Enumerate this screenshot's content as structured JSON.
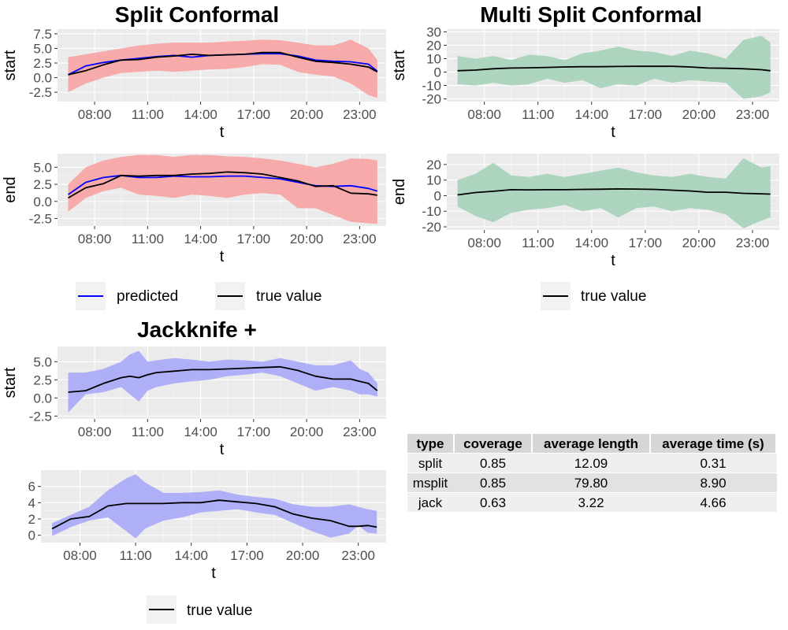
{
  "titles": {
    "split": "Split Conformal",
    "msplit": "Multi Split Conformal",
    "jack": "Jackknife +"
  },
  "legends": {
    "split": [
      "predicted",
      "true value"
    ],
    "msplit": [
      "true value"
    ],
    "jack": [
      "true value"
    ]
  },
  "colors": {
    "split_band": "#f8a3a3",
    "msplit_band": "#a6d2b9",
    "jack_band": "#a8a8f8",
    "predicted_line": "#0000ff",
    "true_line": "#000000",
    "panel_bg": "#ebebeb"
  },
  "table": {
    "headers": [
      "type",
      "coverage",
      "average length",
      "average time (s)"
    ],
    "rows": [
      [
        "split",
        "0.85",
        "12.09",
        "0.31"
      ],
      [
        "msplit",
        "0.85",
        "79.80",
        "8.90"
      ],
      [
        "jack",
        "0.63",
        "3.22",
        "4.66"
      ]
    ]
  },
  "chart_data": [
    {
      "type": "area",
      "group": "Split Conformal",
      "ylabel": "start",
      "xlabel": "t",
      "x_ticks": [
        "08:00",
        "11:00",
        "14:00",
        "17:00",
        "20:00",
        "23:00"
      ],
      "xlim": [
        5.9,
        24.5
      ],
      "ylim": [
        -4.1,
        8.3
      ],
      "y_ticks": [
        -2.5,
        0.0,
        2.5,
        5.0,
        7.5
      ],
      "y_tick_labels": [
        "-2.5",
        "0.0",
        "2.5",
        "5.0",
        "7.5"
      ],
      "x": [
        6.5,
        7.5,
        8.5,
        9.5,
        10.5,
        11.5,
        12.5,
        13.5,
        14.5,
        15.5,
        16.5,
        17.5,
        18.5,
        19.5,
        20.5,
        21.5,
        22.5,
        23.5,
        24.0
      ],
      "series": [
        {
          "role": "band",
          "lower": [
            -2.5,
            -1.0,
            0.0,
            0.8,
            1.0,
            1.2,
            1.0,
            1.2,
            1.4,
            1.5,
            1.8,
            2.3,
            2.2,
            1.0,
            0.5,
            0.2,
            -1.0,
            -3.0,
            -3.5
          ],
          "upper": [
            3.5,
            4.0,
            4.5,
            5.0,
            5.5,
            5.8,
            6.0,
            6.0,
            6.0,
            6.2,
            6.3,
            6.5,
            6.4,
            6.0,
            5.5,
            5.5,
            6.5,
            5.0,
            3.0
          ]
        },
        {
          "name": "predicted",
          "role": "predicted",
          "values": [
            0.5,
            2.0,
            2.6,
            3.0,
            3.3,
            3.6,
            3.8,
            3.5,
            3.8,
            3.9,
            4.0,
            4.1,
            4.1,
            3.7,
            3.0,
            2.8,
            2.7,
            2.3,
            1.1
          ]
        },
        {
          "name": "true value",
          "role": "true",
          "values": [
            0.5,
            1.2,
            2.2,
            3.0,
            3.1,
            3.5,
            3.7,
            4.0,
            3.8,
            3.9,
            4.0,
            4.3,
            4.3,
            3.5,
            2.8,
            2.6,
            2.3,
            1.8,
            1.0
          ]
        }
      ]
    },
    {
      "type": "area",
      "group": "Split Conformal",
      "ylabel": "end",
      "xlabel": "t",
      "x_ticks": [
        "08:00",
        "11:00",
        "14:00",
        "17:00",
        "20:00",
        "23:00"
      ],
      "xlim": [
        5.9,
        24.5
      ],
      "ylim": [
        -3.6,
        7.0
      ],
      "y_ticks": [
        -2.5,
        0.0,
        2.5,
        5.0
      ],
      "y_tick_labels": [
        "-2.5",
        "0.0",
        "2.5",
        "5.0"
      ],
      "x": [
        6.5,
        7.5,
        8.5,
        9.5,
        10.5,
        11.5,
        12.5,
        13.5,
        14.5,
        15.5,
        16.5,
        17.5,
        18.5,
        19.5,
        20.5,
        21.5,
        22.5,
        23.5,
        24.0
      ],
      "series": [
        {
          "role": "band",
          "lower": [
            -1.5,
            0.5,
            1.5,
            2.0,
            1.0,
            0.8,
            0.5,
            1.0,
            0.8,
            0.5,
            1.0,
            1.2,
            1.0,
            -1.0,
            -1.0,
            -2.0,
            -3.0,
            -3.2,
            -3.3
          ],
          "upper": [
            2.5,
            5.0,
            6.0,
            6.5,
            6.8,
            6.8,
            6.5,
            6.8,
            6.8,
            6.6,
            6.5,
            6.3,
            6.0,
            5.5,
            5.0,
            5.5,
            6.3,
            6.2,
            6.0
          ]
        },
        {
          "name": "predicted",
          "role": "predicted",
          "values": [
            1.0,
            2.8,
            3.5,
            3.8,
            3.5,
            3.5,
            3.7,
            3.6,
            3.6,
            3.7,
            3.7,
            3.5,
            3.3,
            2.8,
            2.3,
            2.2,
            2.3,
            1.9,
            1.5
          ]
        },
        {
          "name": "true value",
          "role": "true",
          "values": [
            0.5,
            2.0,
            2.6,
            3.8,
            3.7,
            3.8,
            3.8,
            4.0,
            4.1,
            4.3,
            4.2,
            4.0,
            3.5,
            3.0,
            2.2,
            2.3,
            1.2,
            1.1,
            0.9
          ]
        }
      ]
    },
    {
      "type": "area",
      "group": "Multi Split Conformal",
      "ylabel": "start",
      "xlabel": "t",
      "x_ticks": [
        "08:00",
        "11:00",
        "14:00",
        "17:00",
        "20:00",
        "23:00"
      ],
      "xlim": [
        5.9,
        24.5
      ],
      "ylim": [
        -22.0,
        32.0
      ],
      "y_ticks": [
        -20,
        -10,
        0,
        10,
        20,
        30
      ],
      "y_tick_labels": [
        "-20",
        "-10",
        "0",
        "10",
        "20",
        "30"
      ],
      "x": [
        6.5,
        7.5,
        8.5,
        9.5,
        10.5,
        11.5,
        12.5,
        13.5,
        14.5,
        15.5,
        16.5,
        17.5,
        18.5,
        19.5,
        20.5,
        21.5,
        22.5,
        23.5,
        24.0
      ],
      "series": [
        {
          "role": "band",
          "lower": [
            -9.0,
            -10.0,
            -8.0,
            -10.0,
            -9.0,
            -5.0,
            -8.0,
            -6.0,
            -12.0,
            -9.0,
            -10.0,
            -5.0,
            -8.0,
            -6.0,
            -7.0,
            -8.0,
            -20.0,
            -18.0,
            -15.0
          ],
          "upper": [
            12.0,
            10.0,
            12.0,
            9.0,
            13.0,
            12.0,
            9.0,
            14.0,
            16.0,
            19.0,
            16.0,
            15.0,
            12.0,
            16.0,
            14.0,
            10.0,
            24.0,
            27.0,
            22.0
          ]
        },
        {
          "name": "true value",
          "role": "true",
          "values": [
            1.0,
            1.5,
            2.5,
            3.0,
            3.2,
            3.5,
            3.8,
            4.0,
            4.0,
            4.2,
            4.3,
            4.3,
            4.3,
            3.8,
            3.0,
            2.8,
            2.5,
            1.8,
            1.0
          ]
        }
      ]
    },
    {
      "type": "area",
      "group": "Multi Split Conformal",
      "ylabel": "end",
      "xlabel": "t",
      "x_ticks": [
        "08:00",
        "11:00",
        "14:00",
        "17:00",
        "20:00",
        "23:00"
      ],
      "xlim": [
        5.9,
        24.5
      ],
      "ylim": [
        -22.0,
        27.0
      ],
      "y_ticks": [
        -20,
        -10,
        0,
        10,
        20
      ],
      "y_tick_labels": [
        "-20",
        "-10",
        "0",
        "10",
        "20"
      ],
      "x": [
        6.5,
        7.5,
        8.5,
        9.5,
        10.5,
        11.5,
        12.5,
        13.5,
        14.5,
        15.5,
        16.5,
        17.5,
        18.5,
        19.5,
        20.5,
        21.5,
        22.5,
        23.5,
        24.0
      ],
      "series": [
        {
          "role": "band",
          "lower": [
            -7.0,
            -13.0,
            -17.0,
            -11.0,
            -9.0,
            -8.0,
            -6.0,
            -10.0,
            -8.0,
            -14.0,
            -8.0,
            -7.0,
            -10.0,
            -8.0,
            -9.0,
            -12.0,
            -21.0,
            -16.0,
            -14.0
          ],
          "upper": [
            10.0,
            14.0,
            21.0,
            13.0,
            12.0,
            14.0,
            12.0,
            14.0,
            16.0,
            18.0,
            15.0,
            13.0,
            12.0,
            14.0,
            12.0,
            11.0,
            24.0,
            18.0,
            19.0
          ]
        },
        {
          "name": "true value",
          "role": "true",
          "values": [
            0.5,
            2.0,
            2.8,
            3.8,
            3.7,
            3.8,
            3.8,
            4.0,
            4.1,
            4.3,
            4.2,
            4.0,
            3.5,
            3.0,
            2.2,
            2.2,
            1.5,
            1.2,
            1.0
          ]
        }
      ]
    },
    {
      "type": "area",
      "group": "Jackknife +",
      "ylabel": "start",
      "xlabel": "t",
      "x_ticks": [
        "08:00",
        "11:00",
        "14:00",
        "17:00",
        "20:00",
        "23:00"
      ],
      "xlim": [
        5.9,
        24.5
      ],
      "ylim": [
        -2.9,
        7.1
      ],
      "y_ticks": [
        -2.5,
        0.0,
        2.5,
        5.0
      ],
      "y_tick_labels": [
        "-2.5",
        "0.0",
        "2.5",
        "5.0"
      ],
      "x": [
        6.5,
        7.5,
        8.5,
        9.5,
        10.0,
        10.5,
        11.0,
        11.5,
        12.5,
        13.5,
        14.5,
        15.5,
        16.5,
        17.5,
        18.5,
        19.5,
        20.5,
        21.5,
        22.5,
        23.0,
        23.5,
        24.0
      ],
      "series": [
        {
          "role": "band",
          "lower": [
            -2.0,
            0.5,
            0.8,
            1.5,
            0.5,
            -0.5,
            1.0,
            1.5,
            2.0,
            2.3,
            2.5,
            3.0,
            3.2,
            3.5,
            3.0,
            2.0,
            1.0,
            1.5,
            1.0,
            0.5,
            0.5,
            0.2
          ],
          "upper": [
            3.5,
            3.5,
            4.0,
            5.0,
            6.0,
            6.5,
            5.0,
            5.2,
            5.5,
            5.3,
            5.0,
            5.3,
            5.2,
            5.0,
            5.5,
            5.0,
            4.5,
            4.5,
            5.2,
            4.0,
            3.5,
            2.0
          ]
        },
        {
          "name": "true value",
          "role": "true",
          "values": [
            0.8,
            1.0,
            2.0,
            2.8,
            3.0,
            2.8,
            3.2,
            3.5,
            3.7,
            3.9,
            3.9,
            4.0,
            4.1,
            4.2,
            4.3,
            3.8,
            3.0,
            2.6,
            2.6,
            2.3,
            2.0,
            1.0
          ]
        }
      ]
    },
    {
      "type": "area",
      "group": "Jackknife +",
      "ylabel": "end",
      "xlabel": "t",
      "x_ticks": [
        "08:00",
        "11:00",
        "14:00",
        "17:00",
        "20:00",
        "23:00"
      ],
      "xlim": [
        5.9,
        24.5
      ],
      "ylim": [
        -0.9,
        8.0
      ],
      "y_ticks": [
        0,
        2,
        4,
        6
      ],
      "y_tick_labels": [
        "0",
        "2",
        "4",
        "6"
      ],
      "x": [
        6.5,
        7.5,
        8.5,
        9.5,
        10.5,
        11.0,
        11.5,
        12.5,
        13.5,
        14.5,
        15.5,
        16.5,
        17.5,
        18.5,
        19.5,
        20.5,
        21.5,
        22.5,
        23.0,
        23.5,
        24.0
      ],
      "series": [
        {
          "role": "band",
          "lower": [
            -0.1,
            1.0,
            1.8,
            2.2,
            0.5,
            -0.4,
            0.8,
            1.8,
            2.2,
            2.8,
            3.0,
            3.2,
            2.8,
            2.5,
            1.5,
            0.5,
            -0.3,
            0.2,
            1.2,
            0.3,
            0.2
          ],
          "upper": [
            1.5,
            2.5,
            3.5,
            5.5,
            7.0,
            7.5,
            6.5,
            5.2,
            5.2,
            5.3,
            5.5,
            5.0,
            4.7,
            4.5,
            3.8,
            3.5,
            3.5,
            3.8,
            3.5,
            3.2,
            3.0
          ]
        },
        {
          "name": "true value",
          "role": "true",
          "values": [
            0.8,
            2.0,
            2.3,
            3.6,
            3.9,
            3.9,
            3.9,
            3.9,
            4.0,
            4.0,
            4.3,
            4.1,
            3.9,
            3.5,
            2.6,
            2.1,
            1.8,
            1.1,
            1.1,
            1.2,
            1.0
          ]
        }
      ]
    }
  ]
}
